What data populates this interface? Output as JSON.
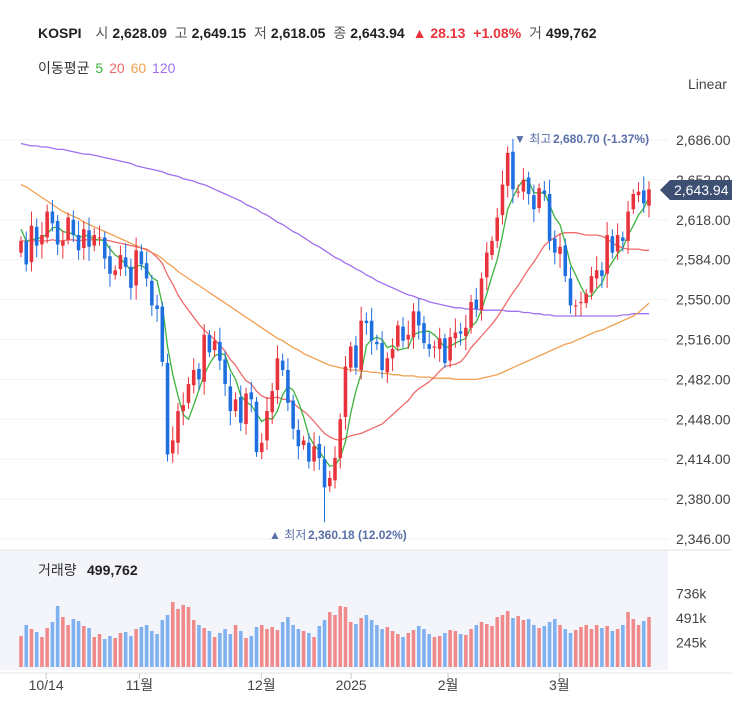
{
  "header": {
    "symbol": "KOSPI",
    "open_label": "시",
    "open": "2,628.09",
    "high_label": "고",
    "high": "2,649.15",
    "low_label": "저",
    "low": "2,618.05",
    "close_label": "종",
    "close": "2,643.94",
    "change": "▲ 28.13",
    "change_pct": "+1.08%",
    "volume_label": "거",
    "volume": "499,762"
  },
  "ma_legend": {
    "label": "이동평균",
    "p5": "5",
    "p20": "20",
    "p60": "60",
    "p120": "120"
  },
  "scale_label": "Linear",
  "price_tag": "2,643.94",
  "high_marker": {
    "prefix": "▼ 최고",
    "value": "2,680.70 (-1.37%)"
  },
  "low_marker": {
    "prefix": "▲ 최저",
    "value": "2,360.18 (12.02%)"
  },
  "volume_panel": {
    "label": "거래량",
    "value": "499,762"
  },
  "colors": {
    "up": "#e8323c",
    "down": "#1e6fe0",
    "ma5": "#3cb33c",
    "ma20": "#ef6b6b",
    "ma60": "#f0a050",
    "ma120": "#a070f0",
    "tag": "#3d4f73",
    "marker": "#5a6fa8"
  },
  "chart_data": {
    "type": "candlestick",
    "title": "KOSPI",
    "y_ticks": [
      "2,686.00",
      "2,652.00",
      "2,618.00",
      "2,584.00",
      "2,550.00",
      "2,516.00",
      "2,482.00",
      "2,448.00",
      "2,414.00",
      "2,380.00",
      "2,346.00"
    ],
    "x_ticks": [
      "10/14",
      "11월",
      "12월",
      "2025",
      "2월",
      "3월"
    ],
    "volume_ticks": [
      "736k",
      "491k",
      "245k"
    ],
    "ylim": [
      2346,
      2686
    ],
    "high": 2680.7,
    "low": 2360.18,
    "last": 2643.94,
    "moving_averages": [
      "5",
      "20",
      "60",
      "120"
    ],
    "closes": [
      2600,
      2580,
      2613,
      2596,
      2605,
      2625,
      2615,
      2597,
      2600,
      2620,
      2605,
      2592,
      2610,
      2595,
      2605,
      2603,
      2585,
      2572,
      2575,
      2588,
      2578,
      2560,
      2592,
      2580,
      2568,
      2545,
      2542,
      2497,
      2418,
      2430,
      2455,
      2460,
      2478,
      2490,
      2482,
      2520,
      2505,
      2515,
      2498,
      2478,
      2455,
      2465,
      2445,
      2470,
      2465,
      2420,
      2428,
      2455,
      2472,
      2500,
      2490,
      2462,
      2440,
      2425,
      2430,
      2412,
      2425,
      2415,
      2390,
      2398,
      2415,
      2448,
      2493,
      2510,
      2492,
      2532,
      2530,
      2515,
      2512,
      2490,
      2500,
      2508,
      2528,
      2515,
      2520,
      2540,
      2528,
      2513,
      2508,
      2510,
      2517,
      2496,
      2518,
      2522,
      2521,
      2526,
      2548,
      2542,
      2568,
      2590,
      2600,
      2620,
      2648,
      2675,
      2644,
      2642,
      2652,
      2640,
      2627,
      2645,
      2640,
      2600,
      2590,
      2595,
      2570,
      2545,
      2545,
      2548,
      2555,
      2570,
      2575,
      2570,
      2605,
      2590,
      2605,
      2600,
      2625,
      2640,
      2642,
      2632,
      2644
    ],
    "ma5": [
      2610,
      2600,
      2601,
      2602,
      2603,
      2606,
      2611,
      2612,
      2608,
      2607,
      2606,
      2603,
      2604,
      2605,
      2601,
      2601,
      2600,
      2593,
      2588,
      2585,
      2580,
      2575,
      2579,
      2579,
      2576,
      2569,
      2566,
      2546,
      2510,
      2486,
      2468,
      2452,
      2448,
      2460,
      2473,
      2486,
      2495,
      2502,
      2504,
      2503,
      2490,
      2482,
      2468,
      2463,
      2460,
      2453,
      2446,
      2449,
      2448,
      2455,
      2469,
      2476,
      2473,
      2463,
      2450,
      2434,
      2426,
      2421,
      2414,
      2408,
      2409,
      2415,
      2429,
      2453,
      2472,
      2487,
      2511,
      2516,
      2518,
      2516,
      2509,
      2511,
      2507,
      2508,
      2509,
      2520,
      2522,
      2523,
      2523,
      2520,
      2515,
      2509,
      2510,
      2513,
      2515,
      2517,
      2527,
      2531,
      2541,
      2555,
      2570,
      2584,
      2605,
      2627,
      2637,
      2646,
      2652,
      2651,
      2641,
      2641,
      2641,
      2631,
      2620,
      2614,
      2598,
      2580,
      2571,
      2561,
      2553,
      2553,
      2559,
      2564,
      2575,
      2582,
      2589,
      2594,
      2605,
      2613,
      2622,
      2628,
      2637
    ],
    "ma20": [
      2600,
      2600,
      2600,
      2600,
      2600,
      2600,
      2601,
      2600,
      2600,
      2601,
      2601,
      2600,
      2601,
      2601,
      2601,
      2601,
      2601,
      2600,
      2599,
      2598,
      2597,
      2596,
      2595,
      2594,
      2593,
      2590,
      2586,
      2581,
      2571,
      2563,
      2554,
      2547,
      2541,
      2535,
      2529,
      2524,
      2520,
      2516,
      2511,
      2506,
      2499,
      2494,
      2487,
      2481,
      2478,
      2472,
      2468,
      2466,
      2466,
      2467,
      2465,
      2465,
      2462,
      2458,
      2455,
      2451,
      2446,
      2441,
      2436,
      2433,
      2431,
      2430,
      2432,
      2434,
      2435,
      2436,
      2438,
      2440,
      2442,
      2444,
      2448,
      2452,
      2456,
      2460,
      2464,
      2470,
      2474,
      2477,
      2480,
      2484,
      2489,
      2493,
      2494,
      2495,
      2497,
      2502,
      2509,
      2514,
      2519,
      2524,
      2529,
      2535,
      2542,
      2549,
      2556,
      2562,
      2569,
      2576,
      2582,
      2589,
      2596,
      2600,
      2603,
      2606,
      2607,
      2607,
      2607,
      2606,
      2605,
      2605,
      2605,
      2604,
      2602,
      2598,
      2596,
      2594,
      2593,
      2593,
      2593,
      2592,
      2592
    ],
    "ma60": [
      2648,
      2646,
      2643,
      2640,
      2637,
      2634,
      2631,
      2628,
      2625,
      2623,
      2621,
      2619,
      2616,
      2614,
      2612,
      2610,
      2608,
      2606,
      2604,
      2602,
      2600,
      2598,
      2596,
      2594,
      2592,
      2590,
      2588,
      2585,
      2581,
      2578,
      2574,
      2571,
      2568,
      2565,
      2562,
      2559,
      2556,
      2553,
      2550,
      2547,
      2544,
      2541,
      2538,
      2535,
      2532,
      2529,
      2526,
      2523,
      2520,
      2517,
      2515,
      2512,
      2509,
      2507,
      2504,
      2502,
      2500,
      2498,
      2496,
      2494,
      2493,
      2492,
      2491,
      2490,
      2490,
      2489,
      2489,
      2488,
      2488,
      2487,
      2487,
      2486,
      2486,
      2485,
      2485,
      2485,
      2484,
      2484,
      2484,
      2483,
      2483,
      2483,
      2483,
      2482,
      2482,
      2482,
      2482,
      2482,
      2483,
      2484,
      2485,
      2486,
      2488,
      2490,
      2492,
      2494,
      2496,
      2498,
      2500,
      2502,
      2504,
      2506,
      2508,
      2510,
      2512,
      2513,
      2515,
      2517,
      2519,
      2521,
      2523,
      2524,
      2526,
      2528,
      2530,
      2532,
      2534,
      2536,
      2539,
      2543,
      2547
    ],
    "ma120": [
      2683,
      2682,
      2681,
      2681,
      2680,
      2680,
      2679,
      2678,
      2678,
      2677,
      2676,
      2675,
      2674,
      2674,
      2673,
      2672,
      2671,
      2670,
      2669,
      2668,
      2667,
      2666,
      2664,
      2663,
      2662,
      2661,
      2660,
      2659,
      2657,
      2656,
      2655,
      2653,
      2652,
      2651,
      2649,
      2648,
      2646,
      2644,
      2642,
      2640,
      2638,
      2636,
      2634,
      2631,
      2629,
      2627,
      2624,
      2622,
      2619,
      2616,
      2614,
      2611,
      2608,
      2606,
      2603,
      2600,
      2597,
      2595,
      2592,
      2589,
      2586,
      2584,
      2581,
      2579,
      2576,
      2574,
      2571,
      2569,
      2566,
      2564,
      2562,
      2560,
      2558,
      2556,
      2554,
      2553,
      2551,
      2550,
      2548,
      2547,
      2546,
      2545,
      2544,
      2543,
      2543,
      2542,
      2542,
      2542,
      2541,
      2541,
      2541,
      2541,
      2541,
      2540,
      2540,
      2540,
      2539,
      2539,
      2538,
      2538,
      2537,
      2537,
      2536,
      2536,
      2536,
      2536,
      2536,
      2536,
      2536,
      2536,
      2536,
      2536,
      2536,
      2536,
      2536,
      2537,
      2537,
      2538,
      2538,
      2538,
      2538
    ],
    "volume_scale_max": 900,
    "volumes": [
      310,
      420,
      380,
      350,
      300,
      390,
      450,
      610,
      500,
      420,
      480,
      460,
      410,
      390,
      300,
      330,
      280,
      310,
      290,
      340,
      350,
      310,
      380,
      400,
      420,
      360,
      330,
      470,
      520,
      650,
      580,
      620,
      600,
      470,
      420,
      390,
      360,
      300,
      340,
      380,
      330,
      420,
      360,
      290,
      310,
      400,
      420,
      380,
      400,
      370,
      450,
      500,
      420,
      380,
      360,
      340,
      300,
      410,
      470,
      550,
      520,
      610,
      600,
      450,
      430,
      490,
      520,
      470,
      420,
      380,
      400,
      360,
      330,
      300,
      340,
      370,
      410,
      380,
      330,
      300,
      310,
      340,
      370,
      360,
      330,
      320,
      380,
      420,
      450,
      430,
      410,
      500,
      520,
      560,
      490,
      510,
      470,
      480,
      420,
      390,
      410,
      450,
      480,
      420,
      380,
      340,
      370,
      400,
      420,
      380,
      420,
      390,
      410,
      360,
      380,
      420,
      550,
      480,
      420,
      460,
      500
    ]
  }
}
